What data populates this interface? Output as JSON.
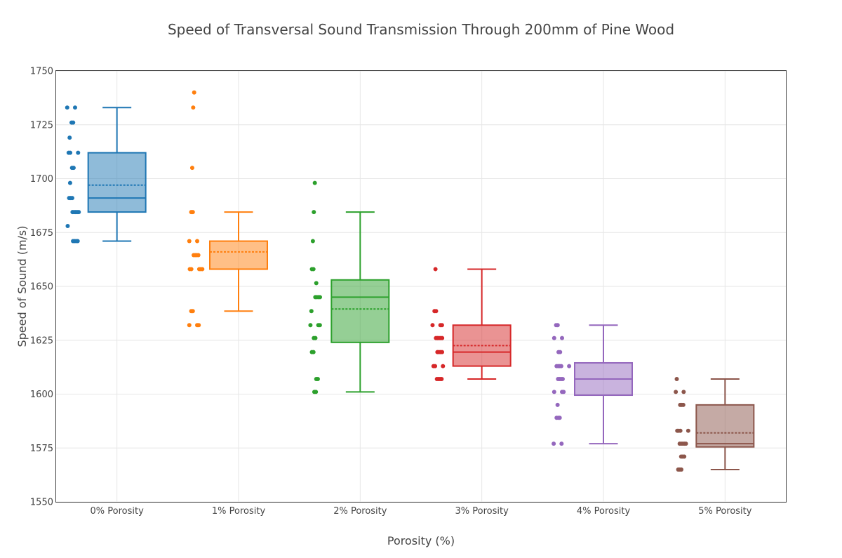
{
  "chart_data": {
    "type": "box",
    "title": "Speed of Transversal Sound Transmission Through 200mm of Pine Wood",
    "xlabel": "Porosity (%)",
    "ylabel": "Speed of Sound (m/s)",
    "ylim": [
      1550,
      1750
    ],
    "yticks": [
      1550,
      1575,
      1600,
      1625,
      1650,
      1675,
      1700,
      1725,
      1750
    ],
    "grid": true,
    "categories": [
      "0% Porosity",
      "1% Porosity",
      "2% Porosity",
      "3% Porosity",
      "4% Porosity",
      "5% Porosity"
    ],
    "series": [
      {
        "category": "0% Porosity",
        "color": "#1f77b4",
        "stats": {
          "lowerfence": 1671,
          "q1": 1684.5,
          "median": 1691,
          "q3": 1712,
          "upperfence": 1733,
          "mean": 1697
        },
        "points": [
          1733,
          1733,
          1726,
          1726,
          1719,
          1712,
          1712,
          1712,
          1705,
          1705,
          1698,
          1691,
          1691,
          1691,
          1684.5,
          1684.5,
          1684.5,
          1684.5,
          1684.5,
          1678,
          1671,
          1671,
          1671,
          1671
        ]
      },
      {
        "category": "1% Porosity",
        "color": "#ff7f0e",
        "stats": {
          "lowerfence": 1638.5,
          "q1": 1658,
          "median": 1658,
          "q3": 1671,
          "upperfence": 1684.5,
          "mean": 1666
        },
        "points": [
          1740,
          1733,
          1705,
          1684.5,
          1684.5,
          1671,
          1671,
          1664.5,
          1664.5,
          1664.5,
          1664.5,
          1658,
          1658,
          1658,
          1658,
          1658,
          1638.5,
          1638.5,
          1632,
          1632,
          1632
        ]
      },
      {
        "category": "2% Porosity",
        "color": "#2ca02c",
        "stats": {
          "lowerfence": 1601,
          "q1": 1624,
          "median": 1645,
          "q3": 1653,
          "upperfence": 1684.5,
          "mean": 1639.5
        },
        "points": [
          1698,
          1684.5,
          1671,
          1658,
          1658,
          1651.5,
          1645,
          1645,
          1645,
          1645,
          1638.5,
          1632,
          1632,
          1632,
          1626,
          1626,
          1619.5,
          1619.5,
          1607,
          1607,
          1601,
          1601
        ]
      },
      {
        "category": "3% Porosity",
        "color": "#d62728",
        "stats": {
          "lowerfence": 1607,
          "q1": 1613,
          "median": 1619.5,
          "q3": 1632,
          "upperfence": 1658,
          "mean": 1622.5
        },
        "points": [
          1658,
          1638.5,
          1638.5,
          1632,
          1632,
          1632,
          1626,
          1626,
          1626,
          1626,
          1626,
          1619.5,
          1619.5,
          1619.5,
          1619.5,
          1613,
          1613,
          1613,
          1607,
          1607,
          1607,
          1607
        ]
      },
      {
        "category": "4% Porosity",
        "color": "#9467bd",
        "stats": {
          "lowerfence": 1577,
          "q1": 1599.5,
          "median": 1607,
          "q3": 1614.5,
          "upperfence": 1632,
          "mean": 1607
        },
        "points": [
          1632,
          1632,
          1626,
          1626,
          1619.5,
          1619.5,
          1613,
          1613,
          1613,
          1613,
          1613,
          1607,
          1607,
          1607,
          1607,
          1601,
          1601,
          1601,
          1595,
          1589,
          1589,
          1589,
          1577,
          1577
        ]
      },
      {
        "category": "5% Porosity",
        "color": "#8c564b",
        "stats": {
          "lowerfence": 1565,
          "q1": 1575.5,
          "median": 1577,
          "q3": 1595,
          "upperfence": 1607,
          "mean": 1582
        },
        "points": [
          1607,
          1601,
          1601,
          1595,
          1595,
          1595,
          1583,
          1583,
          1583,
          1583,
          1577,
          1577,
          1577,
          1577,
          1577,
          1571,
          1571,
          1571,
          1565,
          1565,
          1565
        ]
      }
    ]
  }
}
